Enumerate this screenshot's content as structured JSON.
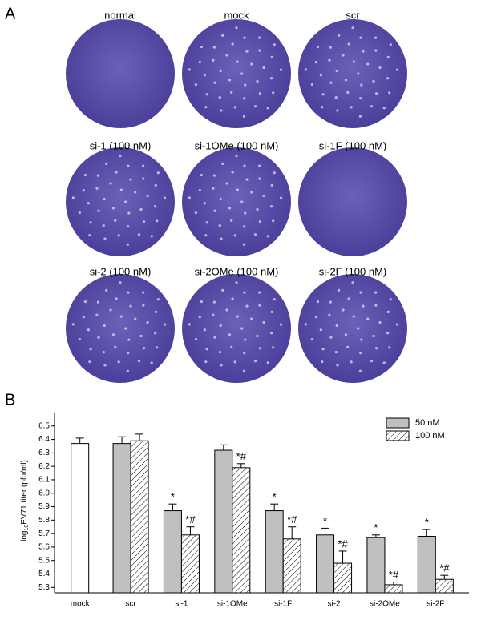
{
  "panel_a": {
    "letter": "A",
    "labels": [
      "normal",
      "mock",
      "scr",
      "si-1 (100 nM)",
      "si-1OMe (100 nM)",
      "si-1F (100 nM)",
      "si-2 (100 nM)",
      "si-2OMe (100 nM)",
      "si-2F (100 nM)"
    ]
  },
  "chart_data": {
    "type": "bar",
    "letter": "B",
    "ylabel": {
      "prefix": "log",
      "subscript": "10",
      "text": "EV71 titer (pfu/ml)"
    },
    "categories": [
      "mock",
      "scr",
      "si-1",
      "si-1OMe",
      "si-1F",
      "si-2",
      "si-2OMe",
      "si-2F"
    ],
    "series": [
      {
        "color": "#ffffff",
        "values": [
          6.37,
          null,
          null,
          null,
          null,
          null,
          null,
          null
        ],
        "errors": [
          0.04,
          null,
          null,
          null,
          null,
          null,
          null,
          null
        ]
      },
      {
        "name": "50 nM",
        "color": "#c0c0c0",
        "values": [
          null,
          6.37,
          5.87,
          6.32,
          5.87,
          5.69,
          5.67,
          5.68
        ],
        "errors": [
          null,
          0.05,
          0.05,
          0.04,
          0.05,
          0.05,
          0.02,
          0.05
        ],
        "markers": [
          null,
          null,
          "*",
          null,
          "*",
          "*",
          "*",
          "*"
        ]
      },
      {
        "name": "100 nM",
        "color": "#ffffff",
        "pattern": "hatch",
        "values": [
          null,
          6.39,
          5.69,
          6.19,
          5.66,
          5.48,
          5.32,
          5.36
        ],
        "errors": [
          null,
          0.05,
          0.06,
          0.03,
          0.09,
          0.09,
          0.02,
          0.03
        ],
        "markers": [
          null,
          null,
          "*#",
          "*#",
          "*#",
          "*#",
          "*#",
          "*#"
        ]
      }
    ],
    "ylim": [
      5.26,
      6.6
    ],
    "yticks": [
      5.3,
      5.4,
      5.5,
      5.6,
      5.7,
      5.8,
      5.9,
      {
        "value": 6,
        "label": "6.0"
      },
      6.1,
      6.2,
      6.3,
      6.4,
      6.5
    ],
    "legend": "upper right"
  }
}
